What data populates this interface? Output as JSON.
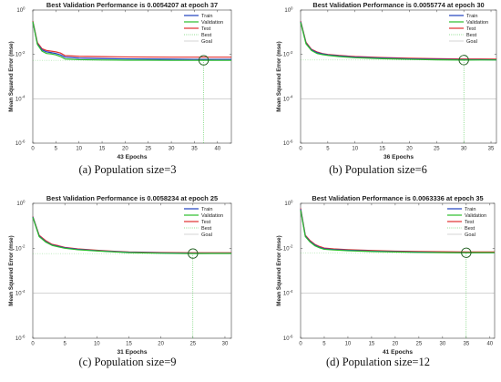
{
  "chart_data": [
    {
      "type": "line",
      "title": "Best Validation Performance is 0.0054207 at epoch 37",
      "xlabel": "43 Epochs",
      "ylabel": "Mean Squared Error  (mse)",
      "caption": "(a) Population size=3",
      "xlim": [
        0,
        43
      ],
      "ylim": [
        1e-06,
        1
      ],
      "y_scale": "log",
      "x_ticks": [
        0,
        5,
        10,
        15,
        20,
        25,
        30,
        35,
        40
      ],
      "y_ticks": [
        {
          "base": "10",
          "exp": "0"
        },
        {
          "base": "10",
          "exp": "-2"
        },
        {
          "base": "10",
          "exp": "-4"
        },
        {
          "base": "10",
          "exp": "-6"
        }
      ],
      "legend_position": "top-right",
      "best_epoch": 37,
      "best_value": 0.0054207,
      "goal": 0.0001,
      "series": [
        {
          "name": "Train",
          "color": "#1f3fbf",
          "x": [
            0,
            1,
            2,
            3,
            4,
            5,
            6,
            7,
            10,
            15,
            20,
            25,
            30,
            35,
            37,
            40,
            43
          ],
          "y": [
            0.3,
            0.03,
            0.016,
            0.013,
            0.012,
            0.011,
            0.0095,
            0.0075,
            0.0068,
            0.0065,
            0.0063,
            0.0062,
            0.0061,
            0.006,
            0.006,
            0.006,
            0.006
          ]
        },
        {
          "name": "Validation",
          "color": "#2bbd2b",
          "x": [
            0,
            1,
            2,
            3,
            4,
            5,
            6,
            7,
            10,
            15,
            20,
            25,
            30,
            35,
            37,
            40,
            43
          ],
          "y": [
            0.3,
            0.028,
            0.014,
            0.011,
            0.0105,
            0.0095,
            0.008,
            0.0062,
            0.0058,
            0.0056,
            0.0055,
            0.0055,
            0.0054,
            0.0054,
            0.0054207,
            0.0054,
            0.0054
          ]
        },
        {
          "name": "Test",
          "color": "#e03030",
          "x": [
            0,
            1,
            2,
            3,
            4,
            5,
            6,
            7,
            10,
            15,
            20,
            25,
            30,
            35,
            37,
            40,
            43
          ],
          "y": [
            0.32,
            0.034,
            0.018,
            0.015,
            0.014,
            0.013,
            0.0115,
            0.0088,
            0.0082,
            0.0079,
            0.0077,
            0.0076,
            0.0075,
            0.0075,
            0.0075,
            0.0075,
            0.0075
          ]
        }
      ]
    },
    {
      "type": "line",
      "title": "Best Validation Performance is 0.0055774 at epoch 30",
      "xlabel": "36 Epochs",
      "ylabel": "Mean Squared Error  (mse)",
      "caption": "(b) Population size=6",
      "xlim": [
        0,
        36
      ],
      "ylim": [
        1e-06,
        1
      ],
      "y_scale": "log",
      "x_ticks": [
        0,
        5,
        10,
        15,
        20,
        25,
        30,
        35
      ],
      "y_ticks": [
        {
          "base": "10",
          "exp": "0"
        },
        {
          "base": "10",
          "exp": "-2"
        },
        {
          "base": "10",
          "exp": "-4"
        },
        {
          "base": "10",
          "exp": "-6"
        }
      ],
      "legend_position": "top-right",
      "best_epoch": 30,
      "best_value": 0.0055774,
      "goal": 0.0001,
      "series": [
        {
          "name": "Train",
          "color": "#1f3fbf",
          "x": [
            0,
            1,
            2,
            3,
            4,
            5,
            7,
            10,
            15,
            20,
            25,
            30,
            33,
            36
          ],
          "y": [
            0.3,
            0.032,
            0.016,
            0.012,
            0.0105,
            0.0095,
            0.0085,
            0.0075,
            0.0068,
            0.0063,
            0.006,
            0.0058,
            0.0058,
            0.0057
          ]
        },
        {
          "name": "Validation",
          "color": "#2bbd2b",
          "x": [
            0,
            1,
            2,
            3,
            4,
            5,
            7,
            10,
            15,
            20,
            25,
            30,
            33,
            36
          ],
          "y": [
            0.28,
            0.03,
            0.015,
            0.011,
            0.0098,
            0.009,
            0.008,
            0.0071,
            0.0064,
            0.006,
            0.0057,
            0.0055774,
            0.0056,
            0.0056
          ]
        },
        {
          "name": "Test",
          "color": "#e03030",
          "x": [
            0,
            1,
            2,
            3,
            4,
            5,
            7,
            10,
            15,
            20,
            25,
            30,
            33,
            36
          ],
          "y": [
            0.32,
            0.035,
            0.017,
            0.013,
            0.011,
            0.01,
            0.009,
            0.008,
            0.0072,
            0.0067,
            0.0064,
            0.0062,
            0.0062,
            0.0061
          ]
        }
      ]
    },
    {
      "type": "line",
      "title": "Best Validation Performance is 0.0058234 at epoch 25",
      "xlabel": "31 Epochs",
      "ylabel": "Mean Squared Error  (mse)",
      "caption": "(c) Population size=9",
      "xlim": [
        0,
        31
      ],
      "ylim": [
        1e-06,
        1
      ],
      "y_scale": "log",
      "x_ticks": [
        0,
        5,
        10,
        15,
        20,
        25,
        30
      ],
      "y_ticks": [
        {
          "base": "10",
          "exp": "0"
        },
        {
          "base": "10",
          "exp": "-2"
        },
        {
          "base": "10",
          "exp": "-4"
        },
        {
          "base": "10",
          "exp": "-6"
        }
      ],
      "legend_position": "top-right",
      "best_epoch": 25,
      "best_value": 0.0058234,
      "goal": 0.0001,
      "series": [
        {
          "name": "Train",
          "color": "#1f3fbf",
          "x": [
            0,
            1,
            2,
            3,
            4,
            5,
            7,
            10,
            13,
            15,
            20,
            25,
            28,
            31
          ],
          "y": [
            0.25,
            0.035,
            0.02,
            0.014,
            0.012,
            0.0105,
            0.009,
            0.0078,
            0.007,
            0.0066,
            0.0062,
            0.006,
            0.006,
            0.006
          ]
        },
        {
          "name": "Validation",
          "color": "#2bbd2b",
          "x": [
            0,
            1,
            2,
            3,
            4,
            5,
            7,
            10,
            13,
            15,
            20,
            25,
            28,
            31
          ],
          "y": [
            0.24,
            0.033,
            0.019,
            0.0135,
            0.0115,
            0.01,
            0.0086,
            0.0076,
            0.0068,
            0.0064,
            0.006,
            0.0058234,
            0.0059,
            0.0059
          ]
        },
        {
          "name": "Test",
          "color": "#e03030",
          "x": [
            0,
            1,
            2,
            3,
            4,
            5,
            7,
            10,
            13,
            15,
            20,
            25,
            28,
            31
          ],
          "y": [
            0.26,
            0.038,
            0.022,
            0.015,
            0.013,
            0.011,
            0.0094,
            0.0082,
            0.0073,
            0.0069,
            0.0065,
            0.0063,
            0.0063,
            0.0063
          ]
        }
      ]
    },
    {
      "type": "line",
      "title": "Best Validation Performance is 0.0063336 at epoch 35",
      "xlabel": "41 Epochs",
      "ylabel": "Mean Squared Error  (mse)",
      "caption": "(d) Population size=12",
      "xlim": [
        0,
        41
      ],
      "ylim": [
        1e-06,
        1
      ],
      "y_scale": "log",
      "x_ticks": [
        0,
        5,
        10,
        15,
        20,
        25,
        30,
        35,
        40
      ],
      "y_ticks": [
        {
          "base": "10",
          "exp": "0"
        },
        {
          "base": "10",
          "exp": "-2"
        },
        {
          "base": "10",
          "exp": "-4"
        },
        {
          "base": "10",
          "exp": "-6"
        }
      ],
      "legend_position": "top-right",
      "best_epoch": 35,
      "best_value": 0.0063336,
      "goal": 0.0001,
      "series": [
        {
          "name": "Train",
          "color": "#1f3fbf",
          "x": [
            0,
            1,
            2,
            3,
            4,
            5,
            7,
            10,
            15,
            20,
            25,
            30,
            35,
            38,
            41
          ],
          "y": [
            0.55,
            0.035,
            0.02,
            0.014,
            0.011,
            0.0095,
            0.0088,
            0.0082,
            0.0075,
            0.007,
            0.0067,
            0.0065,
            0.0064,
            0.0064,
            0.0064
          ]
        },
        {
          "name": "Validation",
          "color": "#2bbd2b",
          "x": [
            0,
            1,
            2,
            3,
            4,
            5,
            7,
            10,
            15,
            20,
            25,
            30,
            35,
            38,
            41
          ],
          "y": [
            0.5,
            0.033,
            0.019,
            0.013,
            0.0105,
            0.009,
            0.0084,
            0.0078,
            0.0072,
            0.0068,
            0.0065,
            0.0064,
            0.0063336,
            0.0064,
            0.0064
          ]
        },
        {
          "name": "Test",
          "color": "#e03030",
          "x": [
            0,
            1,
            2,
            3,
            4,
            5,
            7,
            10,
            15,
            20,
            25,
            30,
            35,
            38,
            41
          ],
          "y": [
            0.6,
            0.038,
            0.022,
            0.015,
            0.012,
            0.0102,
            0.0094,
            0.0087,
            0.008,
            0.0075,
            0.0072,
            0.007,
            0.0069,
            0.0069,
            0.0069
          ]
        }
      ]
    }
  ],
  "legend_extra": {
    "best_label": "Best",
    "goal_label": "Goal",
    "best_color": "#2bbd2b",
    "goal_color": "#bbbbbb"
  }
}
